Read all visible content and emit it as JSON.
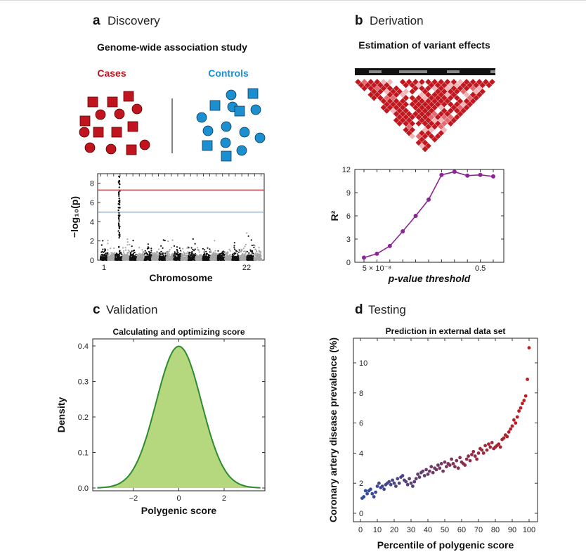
{
  "colors": {
    "case_red": "#c0141e",
    "control_blue": "#1b8fd0",
    "manhattan_dark": "#111111",
    "manhattan_light": "#a6a6a6",
    "genome_wide_line": "#c8323c",
    "suggestive_line": "#4aa6d8",
    "r2_line": "#8b2595",
    "density_fill": "#b5d77e",
    "density_stroke": "#2e8b2e",
    "scatter_low": "#2e4f9f",
    "scatter_high": "#c41a1a"
  },
  "panel_a": {
    "letter": "a",
    "name": "Discovery",
    "subtitle": "Genome-wide association study",
    "cases_label": "Cases",
    "controls_label": "Controls"
  },
  "panel_b": {
    "letter": "b",
    "name": "Derivation",
    "subtitle": "Estimation of variant effects"
  },
  "panel_c": {
    "letter": "c",
    "name": "Validation"
  },
  "panel_d": {
    "letter": "d",
    "name": "Testing"
  },
  "chart_data": [
    {
      "id": "manhattan",
      "type": "scatter",
      "title": "",
      "xlabel": "Chromosome",
      "ylabel": "−log₁₀(p)",
      "ylim": [
        0,
        9
      ],
      "yticks": [
        "0",
        "2",
        "4",
        "6",
        "8"
      ],
      "x_tick_labels": [
        "1",
        "22"
      ],
      "chromosomes": 22,
      "thresholds": [
        {
          "name": "genome-wide significance",
          "value": 7.3
        },
        {
          "name": "suggestive significance",
          "value": 5
        }
      ],
      "peak": {
        "chromosome": 3,
        "max": 8.8
      }
    },
    {
      "id": "r2",
      "type": "line",
      "title": "",
      "xlabel": "p-value threshold",
      "ylabel": "R²",
      "ylim": [
        0,
        12
      ],
      "yticks": [
        "0",
        "3",
        "6",
        "9",
        "12"
      ],
      "x_tick_labels": [
        "5 × 10⁻⁸",
        "0.5"
      ],
      "x": [
        1,
        2,
        3,
        4,
        5,
        6,
        7,
        8,
        9,
        10,
        11
      ],
      "values": [
        0.6,
        1.1,
        2.1,
        4.0,
        6.0,
        8.1,
        11.3,
        11.7,
        11.2,
        11.3,
        11.1
      ]
    },
    {
      "id": "density",
      "type": "area",
      "title": "Calculating and optimizing score",
      "xlabel": "Polygenic score",
      "ylabel": "Density",
      "xlim": [
        -3.8,
        3.8
      ],
      "ylim": [
        0,
        0.4
      ],
      "xticks": [
        "−2",
        "0",
        "2"
      ],
      "yticks": [
        "0.0",
        "0.1",
        "0.2",
        "0.3",
        "0.4"
      ],
      "mean": 0,
      "sd": 1
    },
    {
      "id": "prevalence",
      "type": "scatter",
      "title": "Prediction in external data set",
      "xlabel": "Percentile of polygenic score",
      "ylabel": "Coronary artery disease prevalence (%)",
      "xlim": [
        0,
        100
      ],
      "ylim": [
        0,
        11
      ],
      "xticks": [
        "0",
        "10",
        "20",
        "30",
        "40",
        "50",
        "60",
        "70",
        "80",
        "90",
        "100"
      ],
      "yticks": [
        "0",
        "2",
        "4",
        "6",
        "8",
        "10"
      ],
      "x": [
        1,
        2,
        3,
        4,
        5,
        6,
        7,
        8,
        9,
        10,
        11,
        12,
        13,
        14,
        15,
        16,
        17,
        18,
        19,
        20,
        21,
        22,
        23,
        24,
        25,
        26,
        27,
        28,
        29,
        30,
        31,
        32,
        33,
        34,
        35,
        36,
        37,
        38,
        39,
        40,
        41,
        42,
        43,
        44,
        45,
        46,
        47,
        48,
        49,
        50,
        51,
        52,
        53,
        54,
        55,
        56,
        57,
        58,
        59,
        60,
        61,
        62,
        63,
        64,
        65,
        66,
        67,
        68,
        69,
        70,
        71,
        72,
        73,
        74,
        75,
        76,
        77,
        78,
        79,
        80,
        81,
        82,
        83,
        84,
        85,
        86,
        87,
        88,
        89,
        90,
        91,
        92,
        93,
        94,
        95,
        96,
        97,
        98,
        99,
        100
      ],
      "values": [
        1.0,
        1.1,
        1.5,
        1.3,
        1.5,
        1.6,
        1.3,
        1.1,
        1.4,
        1.8,
        2.0,
        1.7,
        1.8,
        1.6,
        1.9,
        2.0,
        2.1,
        1.9,
        2.2,
        2.0,
        1.8,
        2.3,
        2.0,
        2.4,
        2.5,
        2.2,
        2.1,
        1.9,
        2.3,
        2.0,
        1.8,
        2.1,
        2.3,
        2.6,
        2.4,
        2.7,
        2.8,
        2.5,
        2.9,
        2.6,
        2.8,
        3.1,
        2.7,
        3.0,
        2.9,
        3.2,
        3.0,
        3.3,
        2.8,
        3.4,
        3.1,
        3.3,
        3.2,
        3.6,
        3.3,
        3.1,
        3.5,
        3.0,
        3.7,
        3.4,
        3.3,
        3.2,
        3.6,
        3.8,
        3.5,
        3.9,
        4.1,
        3.8,
        3.6,
        4.0,
        4.3,
        4.2,
        4.0,
        4.5,
        4.2,
        4.6,
        4.4,
        4.7,
        4.3,
        4.4,
        4.5,
        4.6,
        4.4,
        4.9,
        5.0,
        5.2,
        5.1,
        5.4,
        5.6,
        5.8,
        6.2,
        6.0,
        6.4,
        6.8,
        7.0,
        7.3,
        7.5,
        7.8,
        8.9,
        11.0
      ]
    }
  ]
}
